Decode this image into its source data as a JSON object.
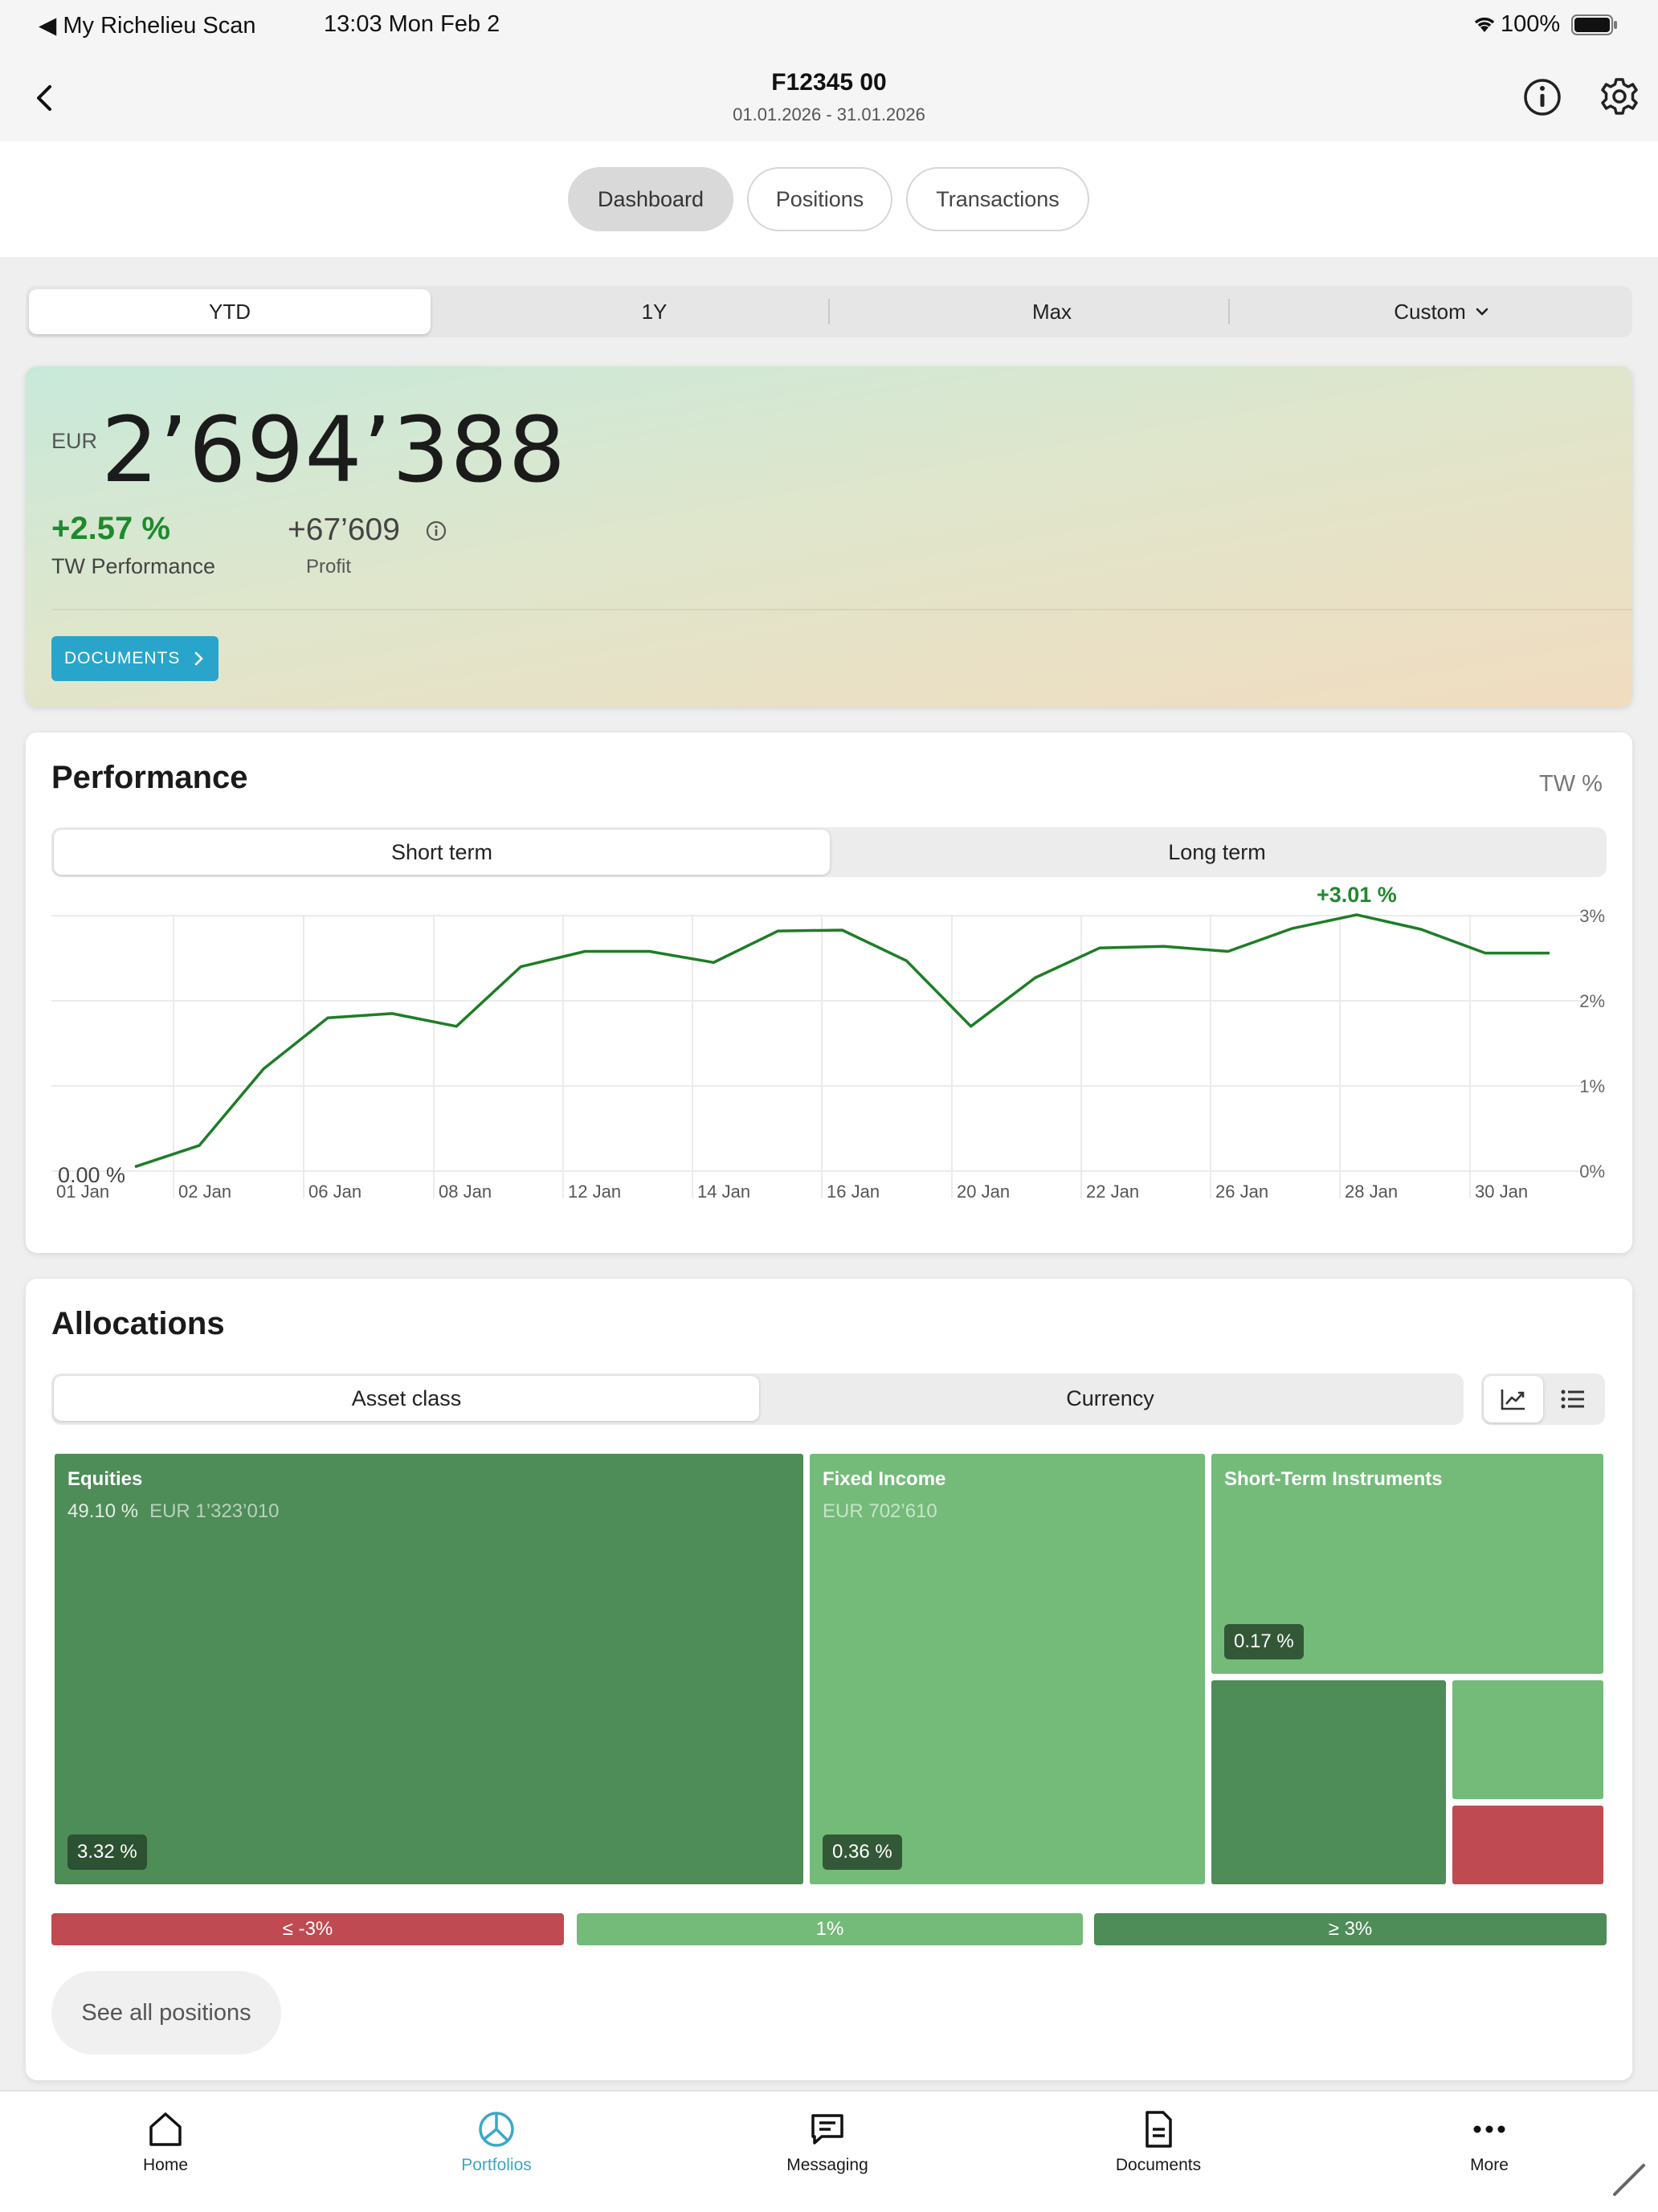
{
  "status_bar": {
    "back_app": "◀ My Richelieu Scan",
    "time": "13:03   Mon Feb 2",
    "battery": "100%"
  },
  "header": {
    "title": "F12345 00",
    "date_range": "01.01.2026 - 31.01.2026"
  },
  "top_tabs": [
    "Dashboard",
    "Positions",
    "Transactions"
  ],
  "top_tabs_active": "Dashboard",
  "range_selector": {
    "options": [
      "YTD",
      "1Y",
      "Max",
      "Custom"
    ],
    "active": "YTD"
  },
  "summary": {
    "currency": "EUR",
    "total": "2’694’388",
    "tw_performance": "+2.57 %",
    "tw_performance_label": "TW Performance",
    "profit": "+67’609",
    "profit_label": "Profit",
    "documents_button": "DOCUMENTS"
  },
  "performance": {
    "title": "Performance",
    "unit_label": "TW %",
    "tabs": [
      "Short term",
      "Long term"
    ],
    "active_tab": "Short term",
    "start_label": "0.00 %",
    "peak_label": "+3.01 %"
  },
  "chart_data": {
    "type": "line",
    "title": "Performance",
    "ylabel": "TW %",
    "ylim": [
      0,
      3
    ],
    "y_ticks": [
      "0%",
      "1%",
      "2%",
      "3%"
    ],
    "x_tick_labels": [
      "01 Jan",
      "02 Jan",
      "06 Jan",
      "08 Jan",
      "12 Jan",
      "14 Jan",
      "16 Jan",
      "20 Jan",
      "22 Jan",
      "26 Jan",
      "28 Jan",
      "30 Jan"
    ],
    "series": [
      {
        "color": "#1e7d26",
        "x": [
          "01 Jan",
          "02 Jan",
          "05 Jan",
          "06 Jan",
          "07 Jan",
          "08 Jan",
          "09 Jan",
          "12 Jan",
          "13 Jan",
          "14 Jan",
          "15 Jan",
          "16 Jan",
          "19 Jan",
          "20 Jan",
          "21 Jan",
          "22 Jan",
          "23 Jan",
          "26 Jan",
          "27 Jan",
          "28 Jan",
          "29 Jan",
          "30 Jan",
          "31 Jan"
        ],
        "values": [
          0.05,
          0.3,
          1.2,
          1.8,
          1.85,
          1.7,
          2.4,
          2.58,
          2.58,
          2.45,
          2.82,
          2.83,
          2.47,
          1.7,
          2.27,
          2.62,
          2.64,
          2.58,
          2.85,
          3.01,
          2.84,
          2.56,
          2.56
        ]
      }
    ],
    "annotations": [
      "0.00 %",
      "+3.01 %"
    ]
  },
  "allocations": {
    "title": "Allocations",
    "tabs": [
      "Asset class",
      "Currency"
    ],
    "active_tab": "Asset class",
    "tiles": [
      {
        "name": "Equities",
        "share": "49.10 %",
        "amount": "EUR 1’323’010",
        "perf": "3.32 %"
      },
      {
        "name": "Fixed Income",
        "share": "",
        "amount": "EUR 702’610",
        "perf": "0.36 %"
      },
      {
        "name": "Short-Term Instruments",
        "share": "",
        "amount": "",
        "perf": "0.17 %"
      }
    ],
    "legend": [
      "≤ -3%",
      "1%",
      "≥ 3%"
    ],
    "see_all": "See all positions"
  },
  "bottom_tabs": [
    "Home",
    "Portfolios",
    "Messaging",
    "Documents",
    "More"
  ],
  "bottom_tabs_active": "Portfolios",
  "colors": {
    "accent": "#29a5cc",
    "positive": "#1e8a2d",
    "tile_dark": "#4e8c58",
    "tile_light": "#74bb7a",
    "tile_negative": "#bf4a51"
  }
}
